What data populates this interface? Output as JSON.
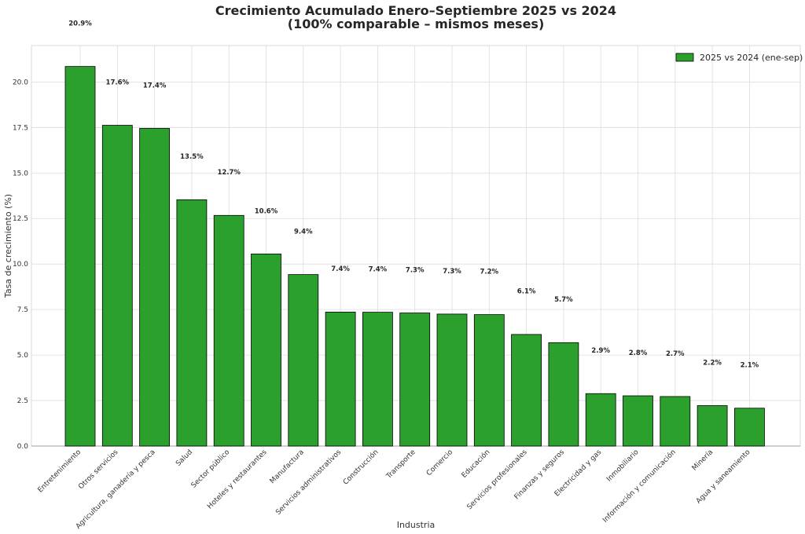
{
  "chart_data": {
    "type": "bar",
    "title": "Crecimiento Acumulado Enero–Septiembre 2025 vs 2024",
    "subtitle": "(100% comparable – mismos meses)",
    "xlabel": "Industria",
    "ylabel": "Tasa de crecimiento (%)",
    "ylim": [
      0,
      22
    ],
    "yticks": [
      "0.0",
      "2.5",
      "5.0",
      "7.5",
      "10.0",
      "12.5",
      "15.0",
      "17.5",
      "20.0"
    ],
    "grid": true,
    "legend_position": "top-right",
    "bar_color": "#2ca02c",
    "categories": [
      "Entretenimiento",
      "Otros servicios",
      "Agricultura, ganadería y pesca",
      "Salud",
      "Sector público",
      "Hoteles y restaurantes",
      "Manufactura",
      "Servicios administrativos",
      "Construcción",
      "Transporte",
      "Comercio",
      "Educación",
      "Servicios profesionales",
      "Finanzas y seguros",
      "Electricidad y gas",
      "Inmobiliario",
      "Información y comunicación",
      "Minería",
      "Agua y saneamiento"
    ],
    "series": [
      {
        "name": "2025 vs 2024 (ene-sep)",
        "values": [
          20.85,
          17.62,
          17.45,
          13.53,
          12.67,
          10.55,
          9.42,
          7.36,
          7.35,
          7.31,
          7.25,
          7.22,
          6.13,
          5.68,
          2.88,
          2.76,
          2.72,
          2.22,
          2.08
        ],
        "labels": [
          "20.9%",
          "17.6%",
          "17.4%",
          "13.5%",
          "12.7%",
          "10.6%",
          "9.4%",
          "7.4%",
          "7.4%",
          "7.3%",
          "7.3%",
          "7.2%",
          "6.1%",
          "5.7%",
          "2.9%",
          "2.8%",
          "2.7%",
          "2.2%",
          "2.1%"
        ]
      }
    ]
  }
}
